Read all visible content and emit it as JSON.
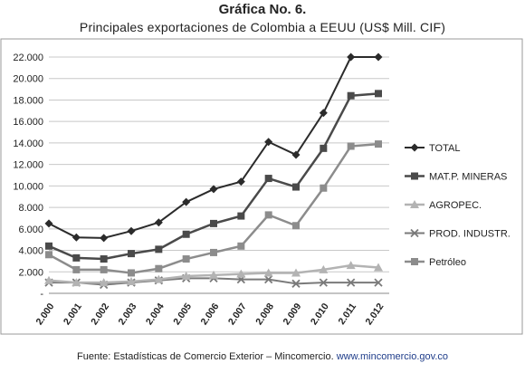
{
  "title": "Gráfica No. 6.",
  "subtitle": "Principales exportaciones  de Colombia  a EEUU   (US$ Mill. CIF)",
  "source": {
    "text": "Fuente: Estadísticas de Comercio Exterior – Mincomercio. ",
    "link": "www.mincomercio.gov.co"
  },
  "chart_data": {
    "type": "line",
    "x": [
      "2.000",
      "2.001",
      "2.002",
      "2.003",
      "2.004",
      "2.005",
      "2.006",
      "2.007",
      "2.008",
      "2.009",
      "2.010",
      "2.011",
      "2.012"
    ],
    "yticks": [
      "-",
      "2.000",
      "4.000",
      "6.000",
      "8.000",
      "10.000",
      "12.000",
      "14.000",
      "16.000",
      "18.000",
      "20.000",
      "22.000"
    ],
    "ylim": [
      0,
      22000
    ],
    "grid": true,
    "legend_position": "right",
    "series": [
      {
        "name": "TOTAL",
        "marker": "diamond",
        "color": "#2b2b2b",
        "width": 2,
        "values": [
          6500,
          5200,
          5150,
          5800,
          6600,
          8500,
          9700,
          10400,
          14100,
          12900,
          16800,
          22000,
          22000
        ]
      },
      {
        "name": "MAT.P. MINERAS",
        "marker": "square",
        "color": "#4a4a4a",
        "width": 2.5,
        "values": [
          4400,
          3300,
          3200,
          3700,
          4100,
          5500,
          6500,
          7200,
          10700,
          9900,
          13500,
          18400,
          18600
        ]
      },
      {
        "name": "AGROPEC.",
        "marker": "triangle",
        "color": "#b3b3b3",
        "width": 2.5,
        "values": [
          1200,
          1000,
          1000,
          1100,
          1300,
          1600,
          1700,
          1800,
          1900,
          1900,
          2200,
          2600,
          2400
        ]
      },
      {
        "name": "PROD. INDUSTR.",
        "marker": "x",
        "color": "#7a7a7a",
        "width": 2,
        "values": [
          1000,
          1000,
          800,
          1000,
          1200,
          1400,
          1400,
          1300,
          1300,
          900,
          1000,
          1000,
          1000
        ]
      },
      {
        "name": "Petróleo",
        "marker": "square",
        "color": "#8c8c8c",
        "width": 2.5,
        "values": [
          3600,
          2200,
          2200,
          1900,
          2300,
          3200,
          3800,
          4400,
          7300,
          6300,
          9800,
          13700,
          13900
        ]
      }
    ]
  }
}
